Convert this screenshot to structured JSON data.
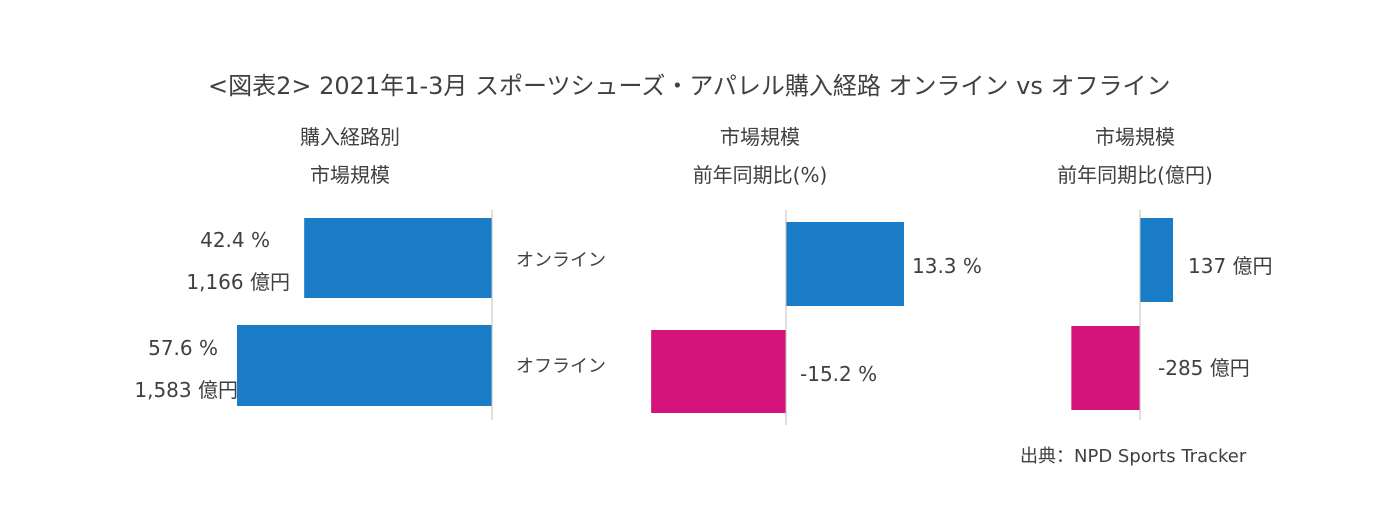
{
  "title": "<図表2> 2021年1-3月 スポーツシューズ・アパレル購入経路 オンライン vs オフライン",
  "colors": {
    "positive": "#1a7cc7",
    "negative": "#d4147a",
    "axis": "#bfbfbf",
    "text": "#404040"
  },
  "source": "出典：NPD Sports Tracker",
  "chart_data": [
    {
      "type": "bar",
      "orientation": "horizontal",
      "title_lines": [
        "購入経路別",
        "市場規模"
      ],
      "categories": [
        "オンライン",
        "オフライン"
      ],
      "share_labels": [
        "42.4 %",
        "57.6 %"
      ],
      "value_labels": [
        "1,166 億円",
        "1,583 億円"
      ],
      "values": [
        1166,
        1583
      ],
      "unit": "億円"
    },
    {
      "type": "bar",
      "orientation": "horizontal",
      "title_lines": [
        "市場規模",
        "前年同期比(%)"
      ],
      "categories": [
        "オンライン",
        "オフライン"
      ],
      "values": [
        13.3,
        -15.2
      ],
      "labels": [
        "13.3 %",
        "-15.2 %"
      ],
      "unit": "%"
    },
    {
      "type": "bar",
      "orientation": "horizontal",
      "title_lines": [
        "市場規模",
        "前年同期比(億円)"
      ],
      "categories": [
        "オンライン",
        "オフライン"
      ],
      "values": [
        137,
        -285
      ],
      "labels": [
        "137 億円",
        "-285 億円"
      ],
      "unit": "億円"
    }
  ]
}
